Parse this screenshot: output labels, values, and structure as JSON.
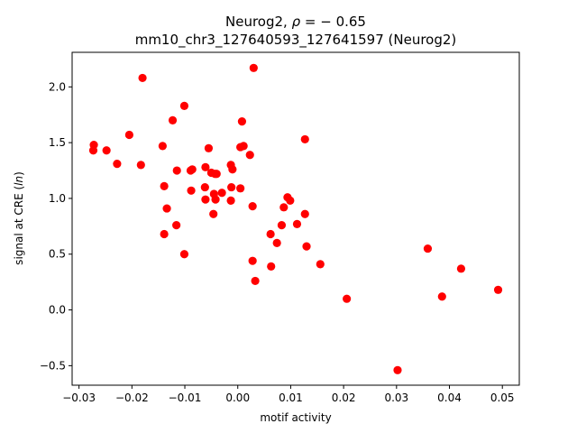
{
  "chart_data": {
    "type": "scatter",
    "title_line1_prefix": "Neurog2, ",
    "title_line1_rho": "ρ",
    "title_line1_suffix": " = − 0.65",
    "title_line2": "mm10_chr3_127640593_127641597 (Neurog2)",
    "xlabel": "motif activity",
    "ylabel_prefix": "signal at CRE (",
    "ylabel_italic": "ln",
    "ylabel_suffix": ")",
    "xlim": [
      -0.0313,
      0.0532
    ],
    "ylim": [
      -0.675,
      2.31
    ],
    "xticks": [
      -0.03,
      -0.02,
      -0.01,
      0.0,
      0.01,
      0.02,
      0.03,
      0.04,
      0.05
    ],
    "xtick_labels": [
      "−0.03",
      "−0.02",
      "−0.01",
      "0.00",
      "0.01",
      "0.02",
      "0.03",
      "0.04",
      "0.05"
    ],
    "yticks": [
      -0.5,
      0.0,
      0.5,
      1.0,
      1.5,
      2.0
    ],
    "ytick_labels": [
      "−0.5",
      "0.0",
      "0.5",
      "1.0",
      "1.5",
      "2.0"
    ],
    "grid": false,
    "legend": "none",
    "marker_color": "#ff0000",
    "points": [
      {
        "x": -0.0272,
        "y": 1.48
      },
      {
        "x": -0.0273,
        "y": 1.43
      },
      {
        "x": -0.0248,
        "y": 1.43
      },
      {
        "x": -0.0228,
        "y": 1.31
      },
      {
        "x": -0.0205,
        "y": 1.57
      },
      {
        "x": -0.0183,
        "y": 1.3
      },
      {
        "x": -0.018,
        "y": 2.08
      },
      {
        "x": -0.0142,
        "y": 1.47
      },
      {
        "x": -0.0139,
        "y": 1.11
      },
      {
        "x": -0.0134,
        "y": 0.91
      },
      {
        "x": -0.0139,
        "y": 0.68
      },
      {
        "x": -0.0123,
        "y": 1.7
      },
      {
        "x": -0.0115,
        "y": 1.25
      },
      {
        "x": -0.0116,
        "y": 0.76
      },
      {
        "x": -0.0101,
        "y": 1.83
      },
      {
        "x": -0.0101,
        "y": 0.5
      },
      {
        "x": -0.0089,
        "y": 1.25
      },
      {
        "x": -0.0086,
        "y": 1.26
      },
      {
        "x": -0.0088,
        "y": 1.07
      },
      {
        "x": -0.0061,
        "y": 1.28
      },
      {
        "x": -0.0062,
        "y": 1.1
      },
      {
        "x": -0.0061,
        "y": 0.99
      },
      {
        "x": -0.0055,
        "y": 1.45
      },
      {
        "x": -0.005,
        "y": 1.23
      },
      {
        "x": -0.0043,
        "y": 1.22
      },
      {
        "x": -0.004,
        "y": 1.22
      },
      {
        "x": -0.0045,
        "y": 1.04
      },
      {
        "x": -0.0042,
        "y": 0.99
      },
      {
        "x": -0.0046,
        "y": 0.86
      },
      {
        "x": -0.003,
        "y": 1.05
      },
      {
        "x": -0.0013,
        "y": 1.3
      },
      {
        "x": -0.001,
        "y": 1.26
      },
      {
        "x": -0.0012,
        "y": 1.1
      },
      {
        "x": -0.0013,
        "y": 0.98
      },
      {
        "x": 0.0005,
        "y": 1.46
      },
      {
        "x": 0.0011,
        "y": 1.47
      },
      {
        "x": 0.0008,
        "y": 1.69
      },
      {
        "x": 0.0005,
        "y": 1.09
      },
      {
        "x": 0.0023,
        "y": 1.39
      },
      {
        "x": 0.003,
        "y": 2.17
      },
      {
        "x": 0.0028,
        "y": 0.93
      },
      {
        "x": 0.0028,
        "y": 0.44
      },
      {
        "x": 0.0033,
        "y": 0.26
      },
      {
        "x": 0.0062,
        "y": 0.68
      },
      {
        "x": 0.0063,
        "y": 0.39
      },
      {
        "x": 0.0074,
        "y": 0.6
      },
      {
        "x": 0.0083,
        "y": 0.76
      },
      {
        "x": 0.0087,
        "y": 0.92
      },
      {
        "x": 0.0094,
        "y": 1.01
      },
      {
        "x": 0.0099,
        "y": 0.98
      },
      {
        "x": 0.0112,
        "y": 0.77
      },
      {
        "x": 0.0127,
        "y": 0.86
      },
      {
        "x": 0.0127,
        "y": 1.53
      },
      {
        "x": 0.013,
        "y": 0.57
      },
      {
        "x": 0.0156,
        "y": 0.41
      },
      {
        "x": 0.0206,
        "y": 0.1
      },
      {
        "x": 0.0302,
        "y": -0.54
      },
      {
        "x": 0.0359,
        "y": 0.55
      },
      {
        "x": 0.0386,
        "y": 0.12
      },
      {
        "x": 0.0422,
        "y": 0.37
      },
      {
        "x": 0.0492,
        "y": 0.18
      }
    ]
  }
}
